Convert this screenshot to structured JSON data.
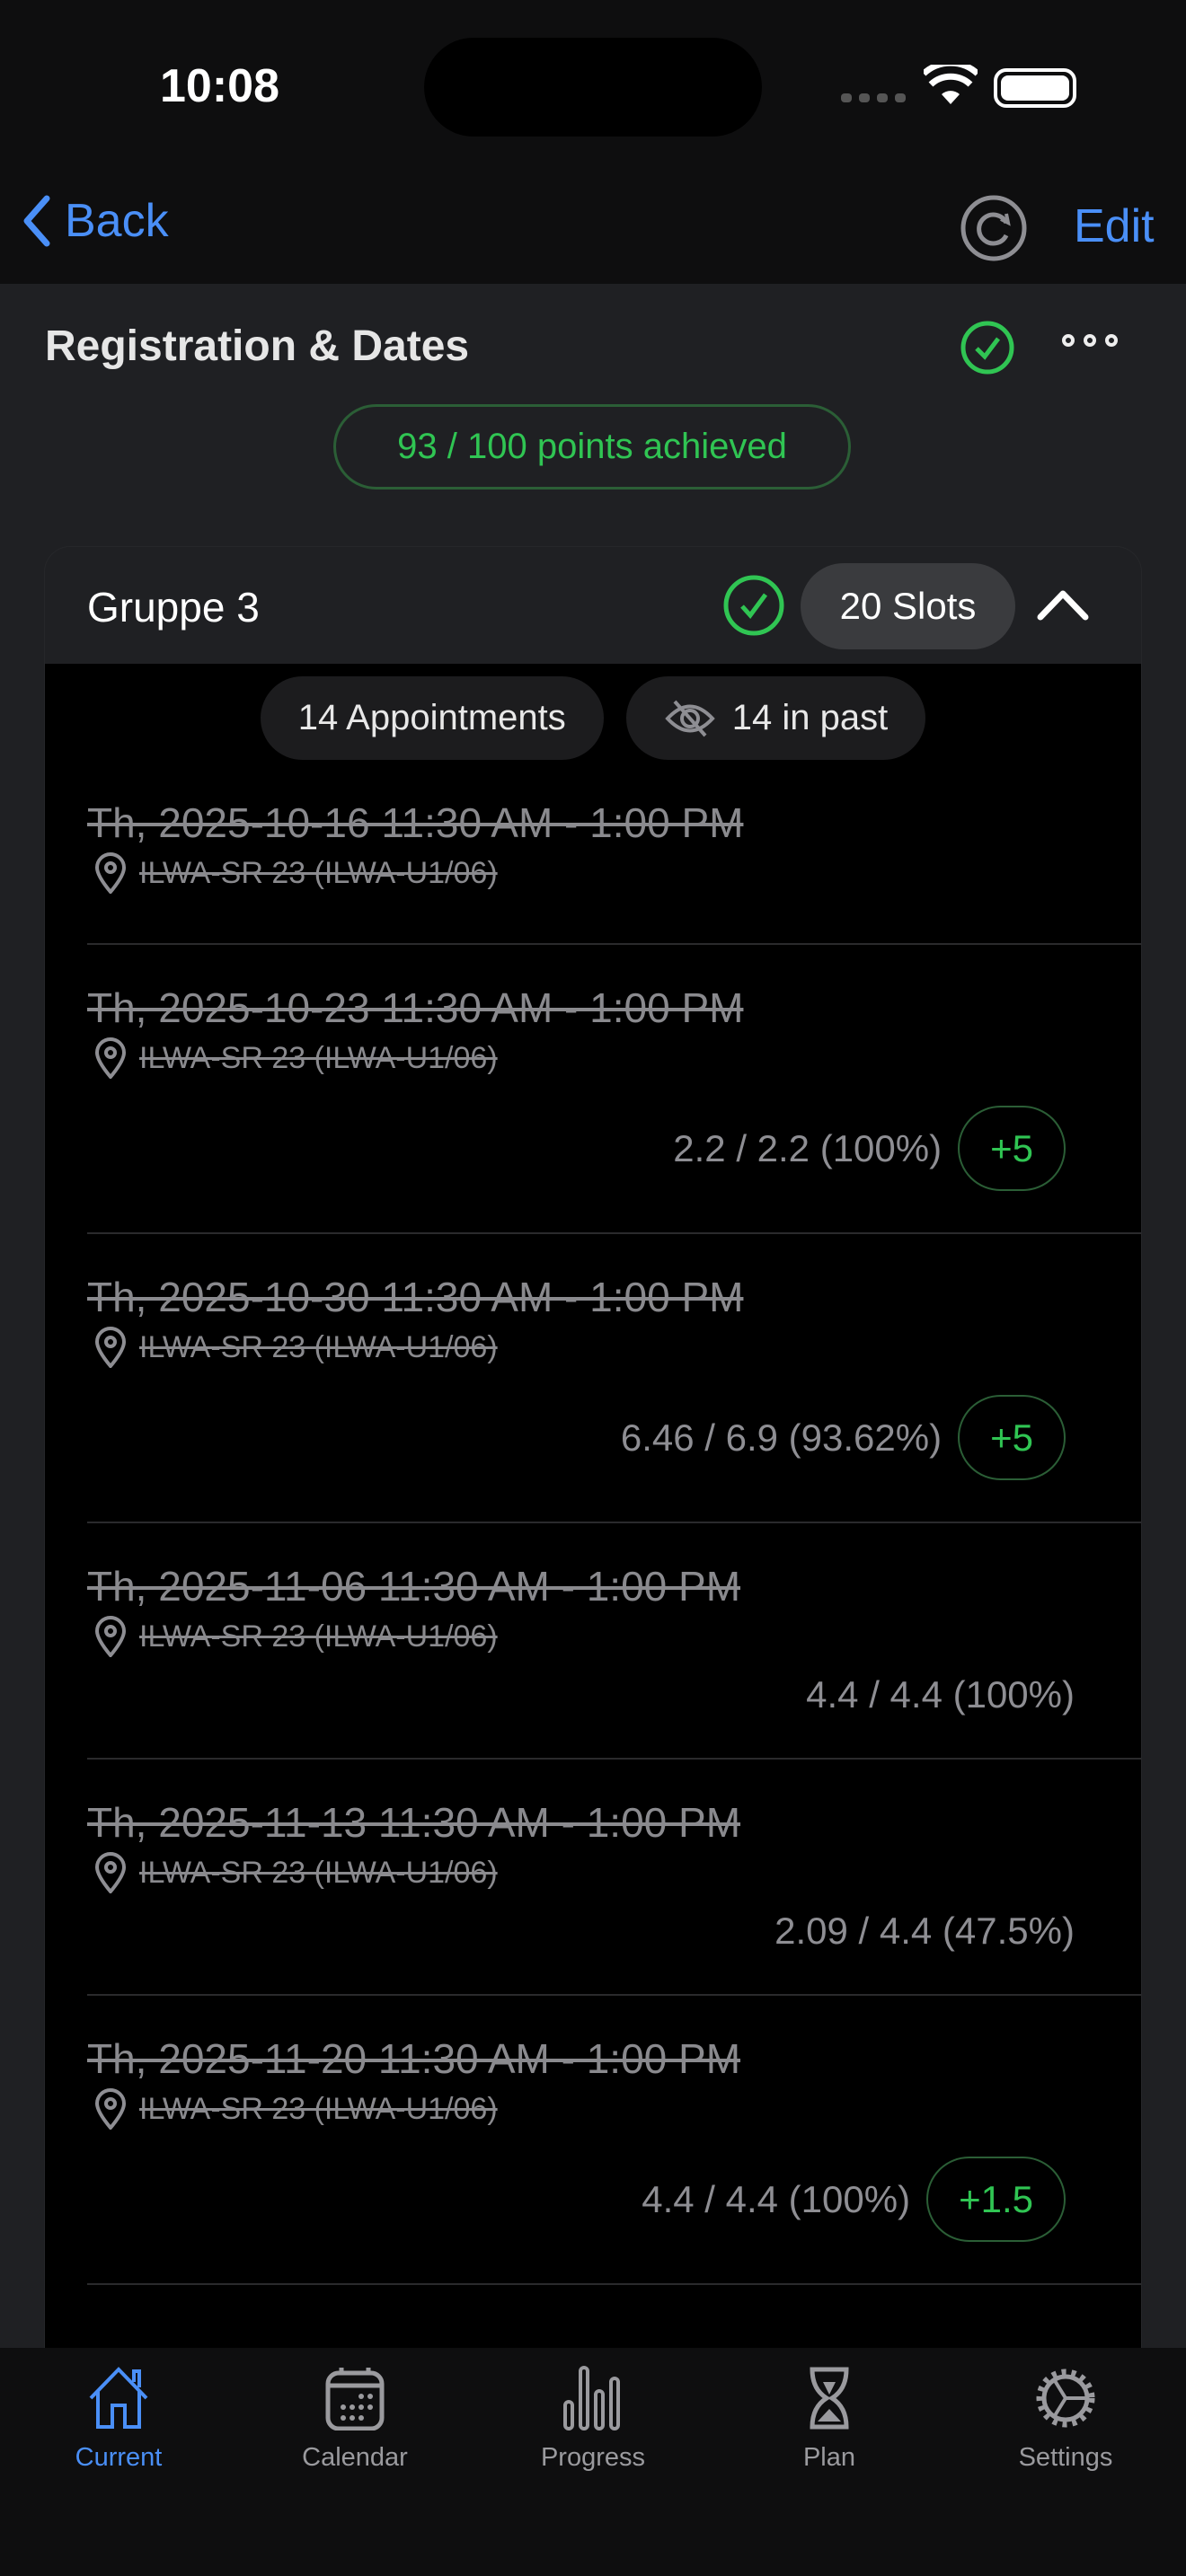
{
  "status_bar": {
    "time": "10:08"
  },
  "nav": {
    "back_label": "Back",
    "edit_label": "Edit"
  },
  "section": {
    "title": "Registration & Dates",
    "points": "93 / 100 points achieved"
  },
  "group": {
    "name": "Gruppe 3",
    "slots": "20 Slots",
    "appointments": "14 Appointments",
    "past": "14 in past",
    "rows": [
      {
        "date": "Th, 2025-10-16 11:30 AM - 1:00 PM",
        "location": "ILWA-SR 23 (ILWA-U1/06)",
        "score": "",
        "bonus": ""
      },
      {
        "date": "Th, 2025-10-23 11:30 AM - 1:00 PM",
        "location": "ILWA-SR 23 (ILWA-U1/06)",
        "score": "2.2 / 2.2 (100%)",
        "bonus": "+5"
      },
      {
        "date": "Th, 2025-10-30 11:30 AM - 1:00 PM",
        "location": "ILWA-SR 23 (ILWA-U1/06)",
        "score": "6.46 / 6.9 (93.62%)",
        "bonus": "+5"
      },
      {
        "date": "Th, 2025-11-06 11:30 AM - 1:00 PM",
        "location": "ILWA-SR 23 (ILWA-U1/06)",
        "score": "4.4 / 4.4 (100%)",
        "bonus": ""
      },
      {
        "date": "Th, 2025-11-13 11:30 AM - 1:00 PM",
        "location": "ILWA-SR 23 (ILWA-U1/06)",
        "score": "2.09 / 4.4 (47.5%)",
        "bonus": ""
      },
      {
        "date": "Th, 2025-11-20 11:30 AM - 1:00 PM",
        "location": "ILWA-SR 23 (ILWA-U1/06)",
        "score": "4.4 / 4.4 (100%)",
        "bonus": "+1.5"
      }
    ]
  },
  "tabs": [
    {
      "label": "Current",
      "icon": "house-icon",
      "active": true
    },
    {
      "label": "Calendar",
      "icon": "calendar-icon"
    },
    {
      "label": "Progress",
      "icon": "chart-bar-icon"
    },
    {
      "label": "Plan",
      "icon": "hourglass-icon"
    },
    {
      "label": "Settings",
      "icon": "gear-icon"
    }
  ],
  "colors": {
    "accent": "#4a8ff7",
    "success": "#30c553",
    "background": "#1f2023"
  }
}
